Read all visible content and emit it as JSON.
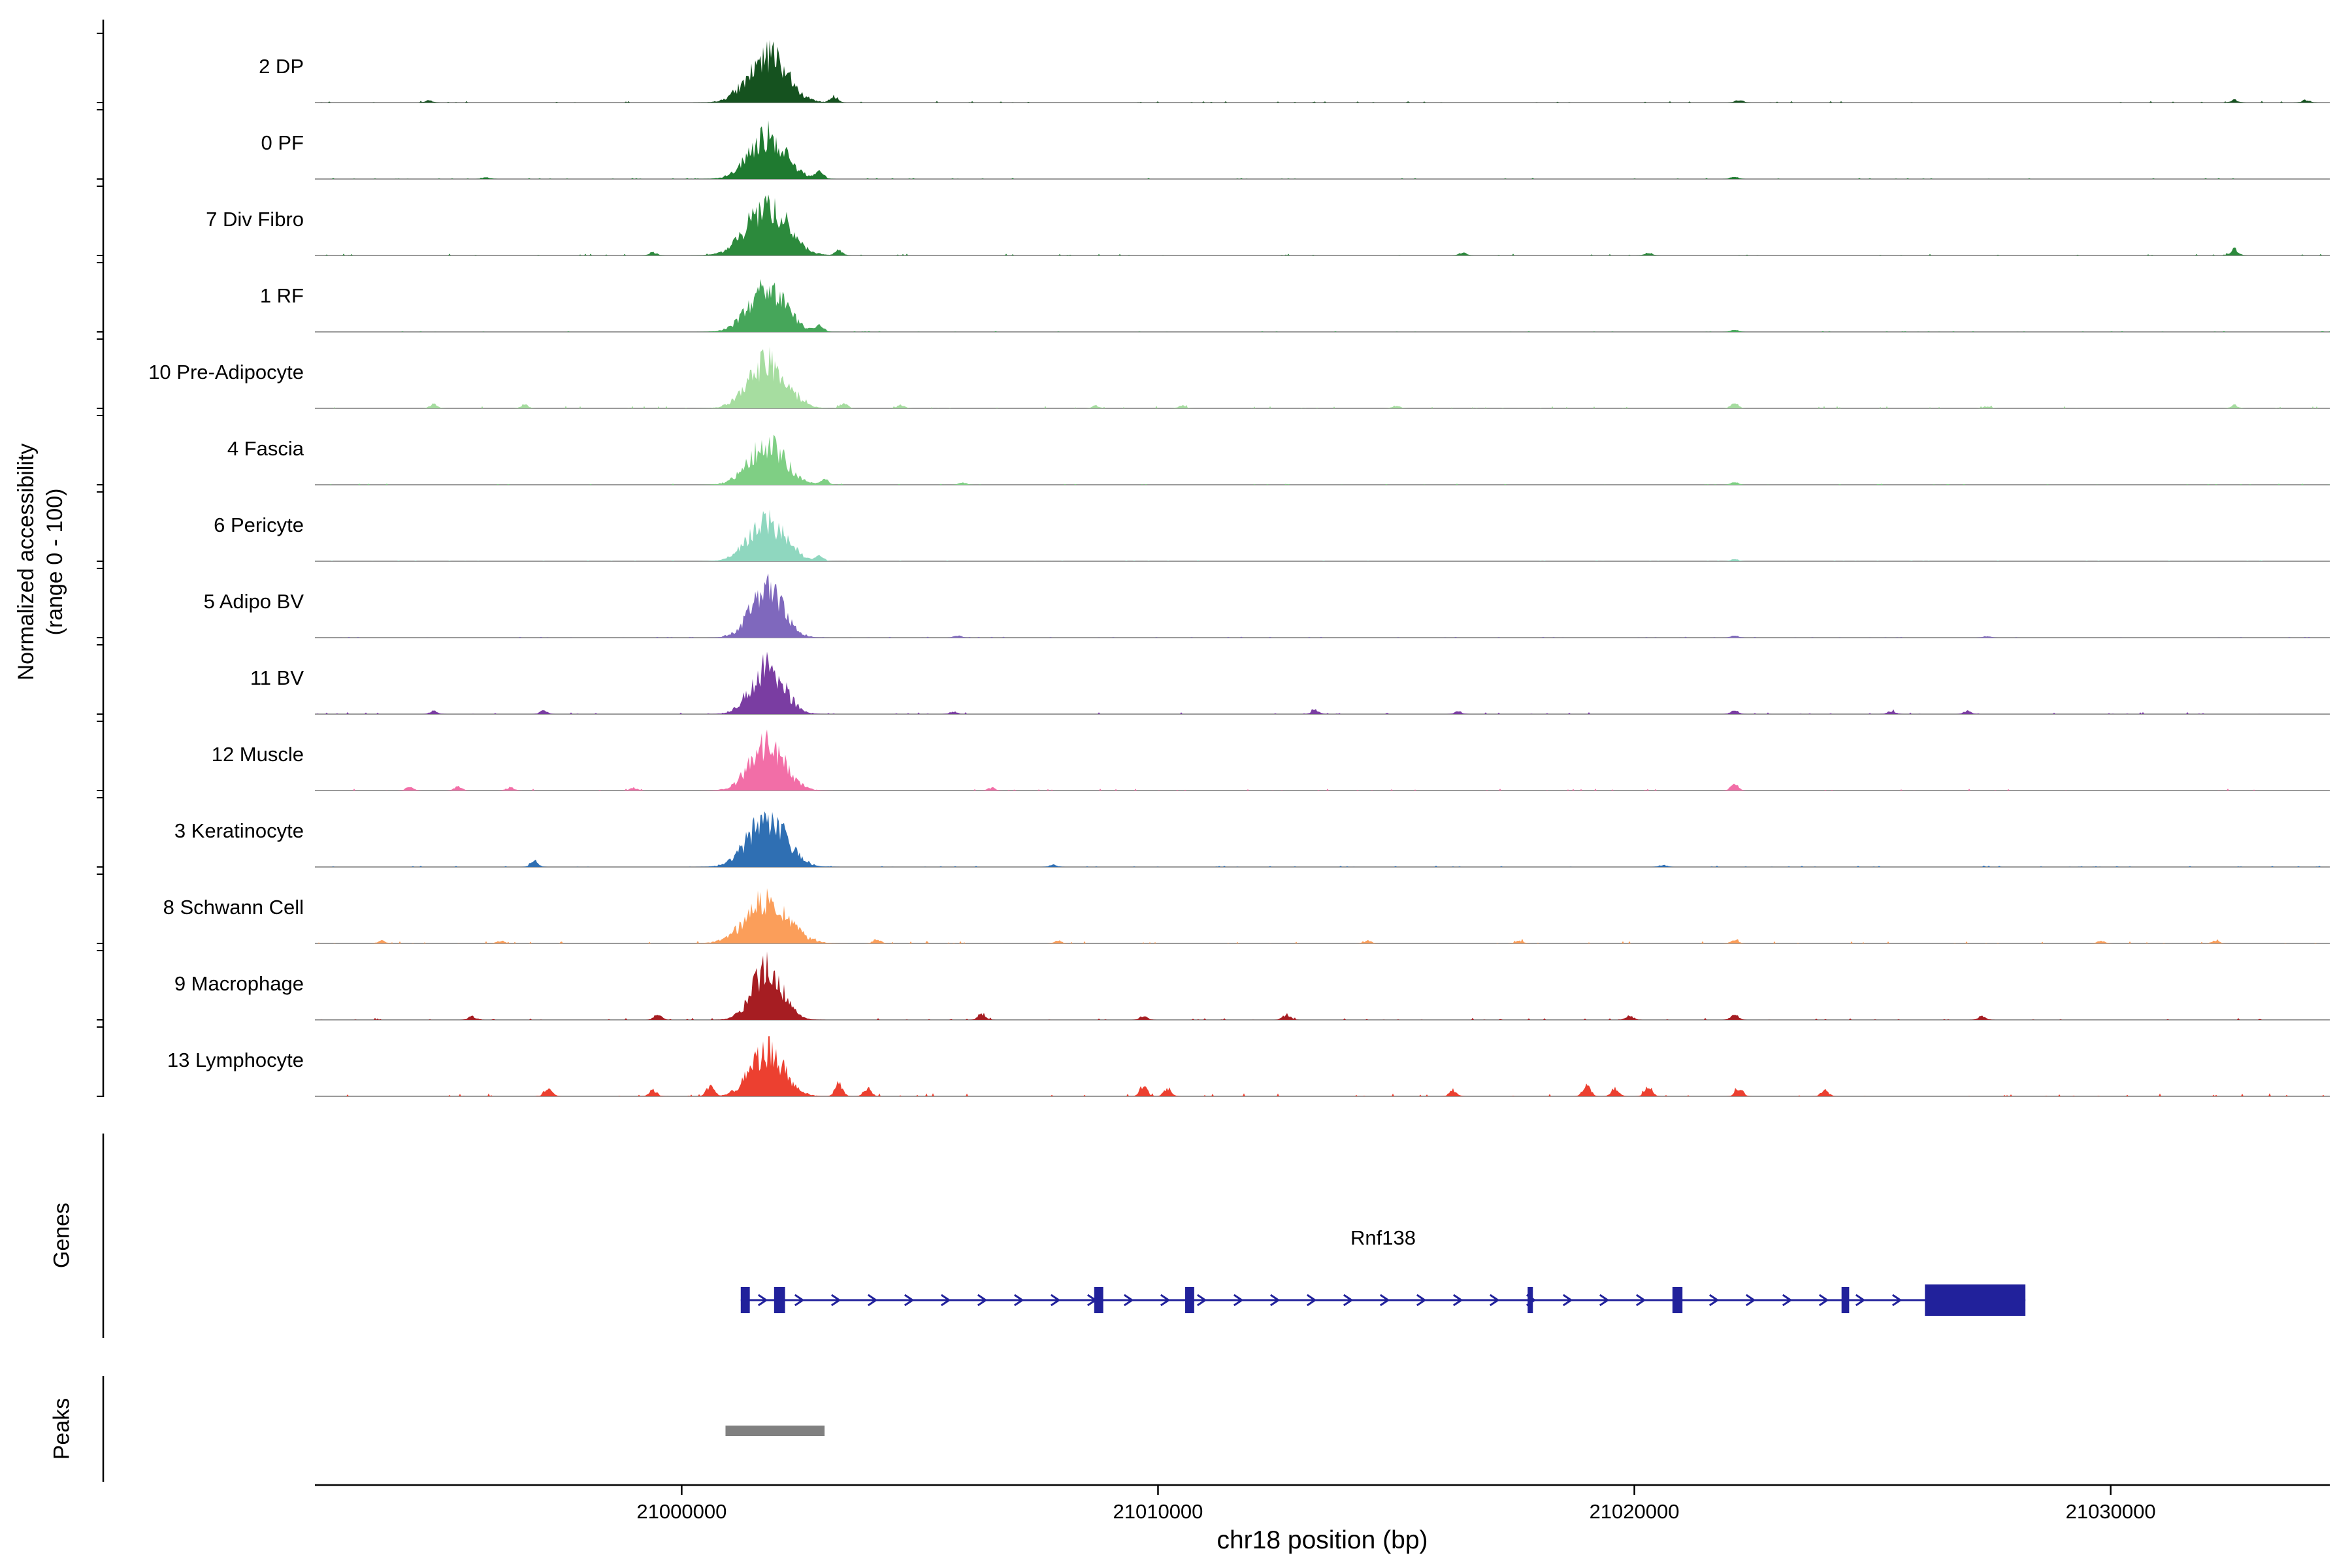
{
  "figure": {
    "y_axis_label": "Normalized accessibility\n(range 0 - 100)",
    "genes_section_label": "Genes",
    "peaks_section_label": "Peaks"
  },
  "chart_data": {
    "type": "area",
    "xlabel": "chr18 position (bp)",
    "ylabel": "Normalized accessibility (range 0 - 100)",
    "xlim": [
      20992300,
      21034600
    ],
    "x_ticks": [
      21000000,
      21010000,
      21020000,
      21030000
    ],
    "x_tick_labels": [
      "21000000",
      "21010000",
      "21020000",
      "21030000"
    ],
    "y_range_per_track": [
      0,
      100
    ],
    "main_peak_center_bp": 21001800,
    "grid": false,
    "tracks": [
      {
        "label": "2 DP",
        "color": "#15521f",
        "peak_height": 0.95,
        "peak_width": 400,
        "noise": 0.25,
        "minor_peaks": [
          [
            21003200,
            0.12
          ],
          [
            20994700,
            0.04
          ],
          [
            21022200,
            0.05
          ],
          [
            21032600,
            0.05
          ],
          [
            21034100,
            0.05
          ]
        ]
      },
      {
        "label": "0 PF",
        "color": "#1f7a30",
        "peak_height": 0.85,
        "peak_width": 380,
        "noise": 0.15,
        "minor_peaks": [
          [
            21002900,
            0.15
          ],
          [
            20995900,
            0.03
          ],
          [
            21022100,
            0.04
          ]
        ]
      },
      {
        "label": "7 Div Fibro",
        "color": "#2c8a3c",
        "peak_height": 1.0,
        "peak_width": 420,
        "noise": 0.3,
        "minor_peaks": [
          [
            21003300,
            0.1
          ],
          [
            20999400,
            0.06
          ],
          [
            21016400,
            0.05
          ],
          [
            21020300,
            0.05
          ],
          [
            21032600,
            0.12
          ]
        ]
      },
      {
        "label": "1 RF",
        "color": "#46a65a",
        "peak_height": 0.82,
        "peak_width": 390,
        "noise": 0.12,
        "minor_peaks": [
          [
            21002900,
            0.12
          ],
          [
            21022100,
            0.04
          ]
        ]
      },
      {
        "label": "10 Pre-Adipocyte",
        "color": "#a6dda0",
        "peak_height": 0.9,
        "peak_width": 390,
        "noise": 0.35,
        "minor_peaks": [
          [
            20994800,
            0.08
          ],
          [
            20996700,
            0.07
          ],
          [
            21003400,
            0.1
          ],
          [
            21004600,
            0.06
          ],
          [
            21008700,
            0.05
          ],
          [
            21010500,
            0.05
          ],
          [
            21015000,
            0.05
          ],
          [
            21022100,
            0.1
          ],
          [
            21027400,
            0.04
          ],
          [
            21032600,
            0.06
          ]
        ]
      },
      {
        "label": "4 Fascia",
        "color": "#7fcf84",
        "peak_height": 0.8,
        "peak_width": 380,
        "noise": 0.18,
        "minor_peaks": [
          [
            21003000,
            0.1
          ],
          [
            21005900,
            0.04
          ],
          [
            21022100,
            0.05
          ]
        ]
      },
      {
        "label": "6 Pericyte",
        "color": "#8fd7bf",
        "peak_height": 0.76,
        "peak_width": 390,
        "noise": 0.15,
        "minor_peaks": [
          [
            21002900,
            0.1
          ],
          [
            21022100,
            0.04
          ]
        ]
      },
      {
        "label": "5 Adipo BV",
        "color": "#7f68bd",
        "peak_height": 0.95,
        "peak_width": 340,
        "noise": 0.15,
        "minor_peaks": [
          [
            21005800,
            0.04
          ],
          [
            21022100,
            0.04
          ],
          [
            21027400,
            0.03
          ]
        ]
      },
      {
        "label": "11 BV",
        "color": "#7a3da2",
        "peak_height": 0.95,
        "peak_width": 340,
        "noise": 0.3,
        "minor_peaks": [
          [
            20994800,
            0.06
          ],
          [
            20997100,
            0.06
          ],
          [
            21005700,
            0.05
          ],
          [
            21013300,
            0.08
          ],
          [
            21016300,
            0.05
          ],
          [
            21022100,
            0.07
          ],
          [
            21025400,
            0.06
          ],
          [
            21027000,
            0.06
          ]
        ]
      },
      {
        "label": "12 Muscle",
        "color": "#f26ea7",
        "peak_height": 0.9,
        "peak_width": 360,
        "noise": 0.28,
        "minor_peaks": [
          [
            20994300,
            0.07
          ],
          [
            20995300,
            0.08
          ],
          [
            20996400,
            0.06
          ],
          [
            20999000,
            0.05
          ],
          [
            21006500,
            0.05
          ],
          [
            21022100,
            0.12
          ]
        ]
      },
      {
        "label": "3 Keratinocyte",
        "color": "#2f6fb3",
        "peak_height": 0.95,
        "peak_width": 400,
        "noise": 0.2,
        "minor_peaks": [
          [
            20996900,
            0.12
          ],
          [
            21007800,
            0.04
          ],
          [
            21020600,
            0.04
          ]
        ]
      },
      {
        "label": "8 Schwann Cell",
        "color": "#fb9e5a",
        "peak_height": 0.85,
        "peak_width": 440,
        "noise": 0.35,
        "minor_peaks": [
          [
            20993700,
            0.05
          ],
          [
            20996200,
            0.05
          ],
          [
            21004100,
            0.08
          ],
          [
            21007900,
            0.05
          ],
          [
            21014400,
            0.05
          ],
          [
            21017600,
            0.05
          ],
          [
            21022100,
            0.06
          ],
          [
            21029800,
            0.05
          ],
          [
            21032200,
            0.05
          ]
        ]
      },
      {
        "label": "9 Macrophage",
        "color": "#a61d22",
        "peak_height": 1.0,
        "peak_width": 310,
        "noise": 0.3,
        "minor_peaks": [
          [
            20995600,
            0.07
          ],
          [
            20999500,
            0.1
          ],
          [
            21006300,
            0.12
          ],
          [
            21009700,
            0.07
          ],
          [
            21012700,
            0.1
          ],
          [
            21019900,
            0.08
          ],
          [
            21022100,
            0.1
          ],
          [
            21027300,
            0.07
          ]
        ]
      },
      {
        "label": "13 Lymphocyte",
        "color": "#ec4030",
        "peak_height": 0.9,
        "peak_width": 350,
        "noise": 0.45,
        "minor_peaks": [
          [
            20997200,
            0.18
          ],
          [
            20999400,
            0.12
          ],
          [
            21000600,
            0.2
          ],
          [
            21003300,
            0.25
          ],
          [
            21003900,
            0.15
          ],
          [
            21009700,
            0.2
          ],
          [
            21010200,
            0.15
          ],
          [
            21016200,
            0.12
          ],
          [
            21019000,
            0.22
          ],
          [
            21019600,
            0.15
          ],
          [
            21020300,
            0.18
          ],
          [
            21022200,
            0.15
          ],
          [
            21024000,
            0.12
          ]
        ]
      }
    ],
    "gene": {
      "name": "Rnf138",
      "start_bp": 21001240,
      "end_bp": 21028210,
      "strand": "+",
      "color": "#21219b",
      "exons": [
        [
          21001240,
          21001430,
          40
        ],
        [
          21001940,
          21002170,
          40
        ],
        [
          21008660,
          21008850,
          40
        ],
        [
          21010570,
          21010760,
          40
        ],
        [
          21017760,
          21017870,
          40
        ],
        [
          21020800,
          21021010,
          40
        ],
        [
          21024350,
          21024510,
          40
        ],
        [
          21026100,
          21028210,
          48
        ]
      ]
    },
    "peak_regions": [
      {
        "start_bp": 21000920,
        "end_bp": 21003000,
        "color": "#808080"
      }
    ]
  }
}
